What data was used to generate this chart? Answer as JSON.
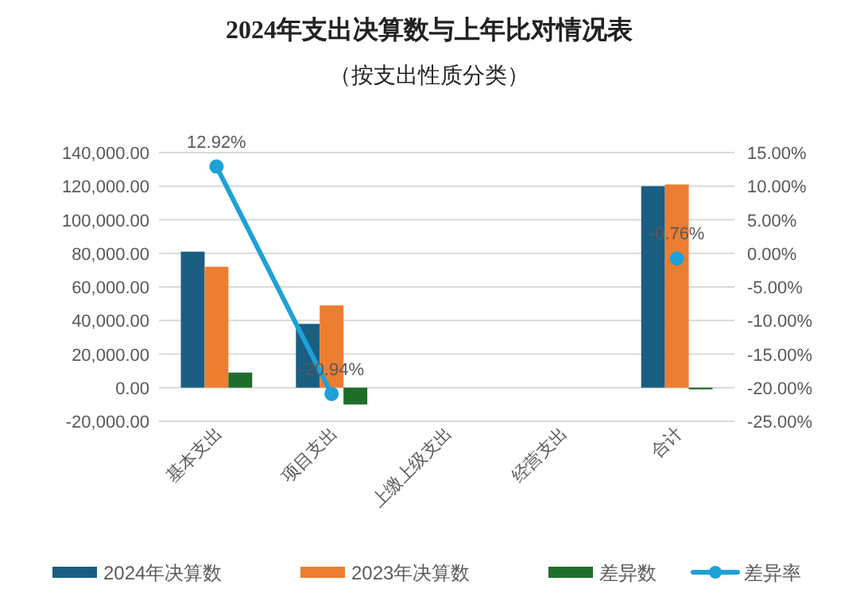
{
  "chart_data": {
    "type": "bar",
    "title": "2024年支出决算数与上年比对情况表",
    "subtitle": "（按支出性质分类）",
    "categories": [
      "基本支出",
      "项目支出",
      "上缴上级支出",
      "经营支出",
      "合计"
    ],
    "series": [
      {
        "name": "2024年决算数",
        "color": "#1a5e82",
        "values": [
          81000,
          38000,
          null,
          null,
          120000
        ]
      },
      {
        "name": "2023年决算数",
        "color": "#ed7d31",
        "values": [
          72000,
          49000,
          null,
          null,
          121000
        ]
      },
      {
        "name": "差异数",
        "color": "#1e6e2a",
        "values": [
          9000,
          -10000,
          null,
          null,
          -1000
        ]
      },
      {
        "name": "差异率",
        "color": "#1ea0d8",
        "type": "line",
        "axis": "y2",
        "marker": "circle",
        "values": [
          12.92,
          -20.94,
          null,
          null,
          -0.76
        ],
        "value_labels": [
          "12.92%",
          "-20.94%",
          null,
          null,
          "-0.76%"
        ]
      }
    ],
    "ylim": [
      -20000,
      140000
    ],
    "yticks": [
      {
        "value": -20000,
        "label": "-20,000.00"
      },
      {
        "value": 0,
        "label": "0.00"
      },
      {
        "value": 20000,
        "label": "20,000.00"
      },
      {
        "value": 40000,
        "label": "40,000.00"
      },
      {
        "value": 60000,
        "label": "60,000.00"
      },
      {
        "value": 80000,
        "label": "80,000.00"
      },
      {
        "value": 100000,
        "label": "100,000.00"
      },
      {
        "value": 120000,
        "label": "120,000.00"
      },
      {
        "value": 140000,
        "label": "140,000.00"
      }
    ],
    "y2lim": [
      -25,
      15
    ],
    "y2ticks": [
      {
        "value": -25,
        "label": "-25.00%"
      },
      {
        "value": -20,
        "label": "-20.00%"
      },
      {
        "value": -15,
        "label": "-15.00%"
      },
      {
        "value": -10,
        "label": "-10.00%"
      },
      {
        "value": -5,
        "label": "-5.00%"
      },
      {
        "value": 0,
        "label": "0.00%"
      },
      {
        "value": 5,
        "label": "5.00%"
      },
      {
        "value": 10,
        "label": "10.00%"
      },
      {
        "value": 15,
        "label": "15.00%"
      }
    ],
    "grid": "y",
    "legend": "bottom"
  }
}
